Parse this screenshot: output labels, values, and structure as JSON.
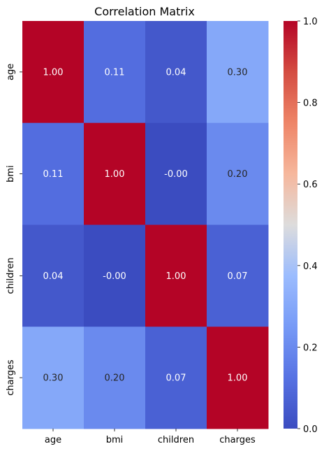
{
  "chart_data": {
    "type": "heatmap",
    "title": "Correlation Matrix",
    "xlabel": "",
    "ylabel": "",
    "x_categories": [
      "age",
      "bmi",
      "children",
      "charges"
    ],
    "y_categories": [
      "age",
      "bmi",
      "children",
      "charges"
    ],
    "values": [
      [
        1.0,
        0.11,
        0.04,
        0.3
      ],
      [
        0.11,
        1.0,
        -0.0,
        0.2
      ],
      [
        0.04,
        -0.0,
        1.0,
        0.07
      ],
      [
        0.3,
        0.2,
        0.07,
        1.0
      ]
    ],
    "cell_labels": [
      [
        "1.00",
        "0.11",
        "0.04",
        "0.30"
      ],
      [
        "0.11",
        "1.00",
        "-0.00",
        "0.20"
      ],
      [
        "0.04",
        "-0.00",
        "1.00",
        "0.07"
      ],
      [
        "0.30",
        "0.20",
        "0.07",
        "1.00"
      ]
    ],
    "colormap": "coolwarm",
    "colorbar": {
      "range": [
        0.0,
        1.0
      ],
      "ticks": [
        0.0,
        0.2,
        0.4,
        0.6,
        0.8,
        1.0
      ],
      "tick_labels": [
        "0.0",
        "0.2",
        "0.4",
        "0.6",
        "0.8",
        "1.0"
      ]
    },
    "grid": false,
    "legend": "colorbar-right"
  }
}
